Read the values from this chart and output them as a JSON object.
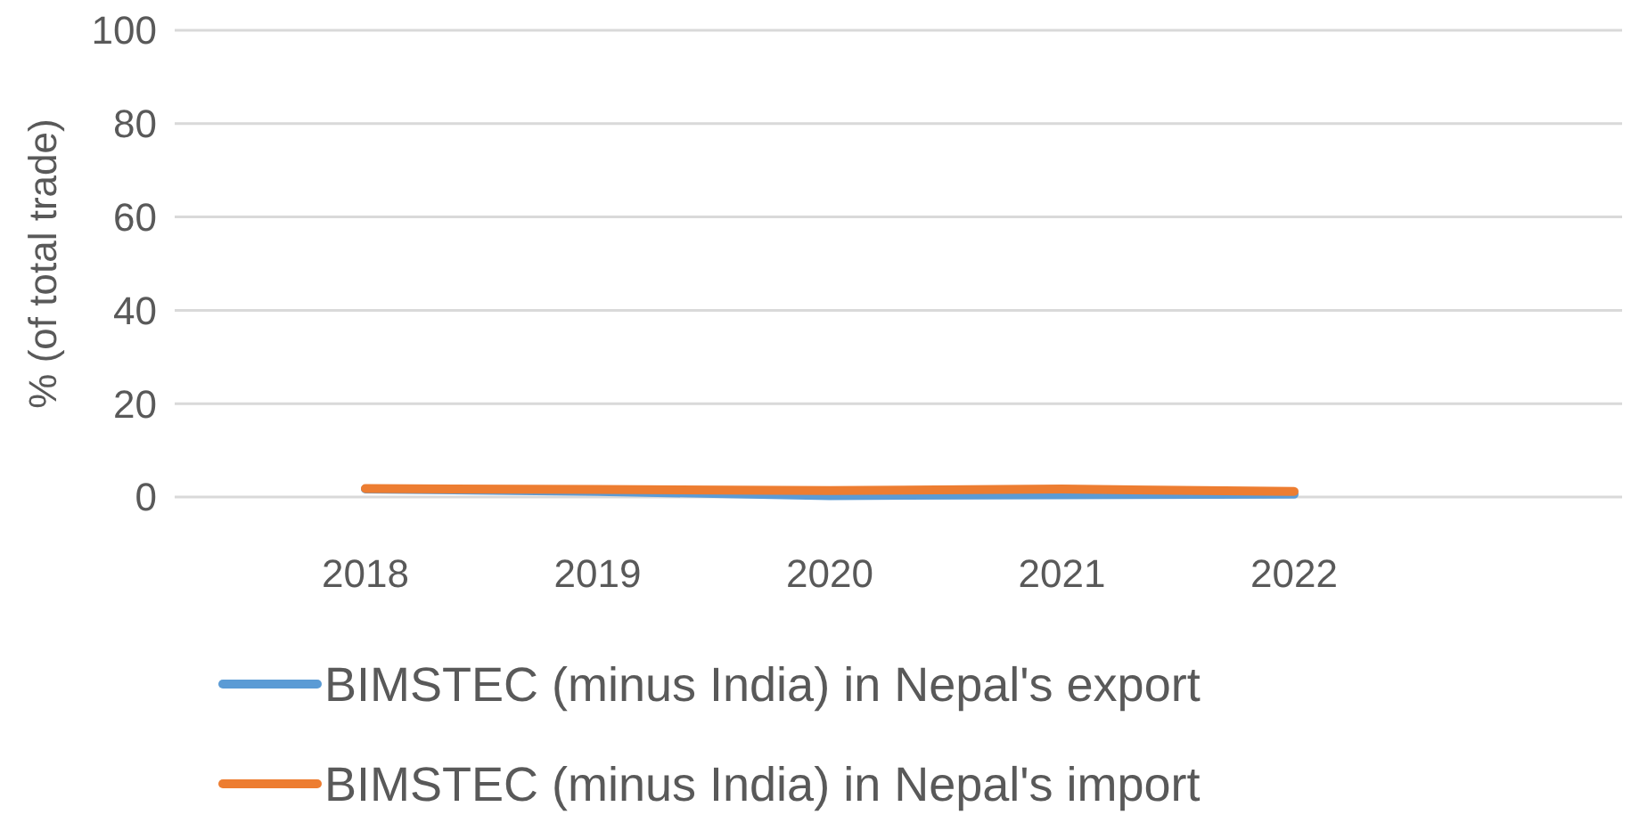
{
  "chart_data": {
    "type": "line",
    "ylabel": "% (of total trade)",
    "categories": [
      "2018",
      "2019",
      "2020",
      "2021",
      "2022"
    ],
    "series": [
      {
        "name": "BIMSTEC (minus India) in Nepal's export",
        "color": "#5b9bd5",
        "values": [
          1.7,
          1.2,
          0.3,
          0.5,
          0.6
        ]
      },
      {
        "name": "BIMSTEC (minus India) in Nepal's import",
        "color": "#ed7d31",
        "values": [
          1.8,
          1.6,
          1.4,
          1.7,
          1.2
        ]
      }
    ],
    "ylim": [
      0,
      100
    ],
    "yticks": [
      0,
      20,
      40,
      60,
      80,
      100
    ],
    "grid": "y",
    "legend": "bottom",
    "marker": "none",
    "line_style": "solid"
  }
}
